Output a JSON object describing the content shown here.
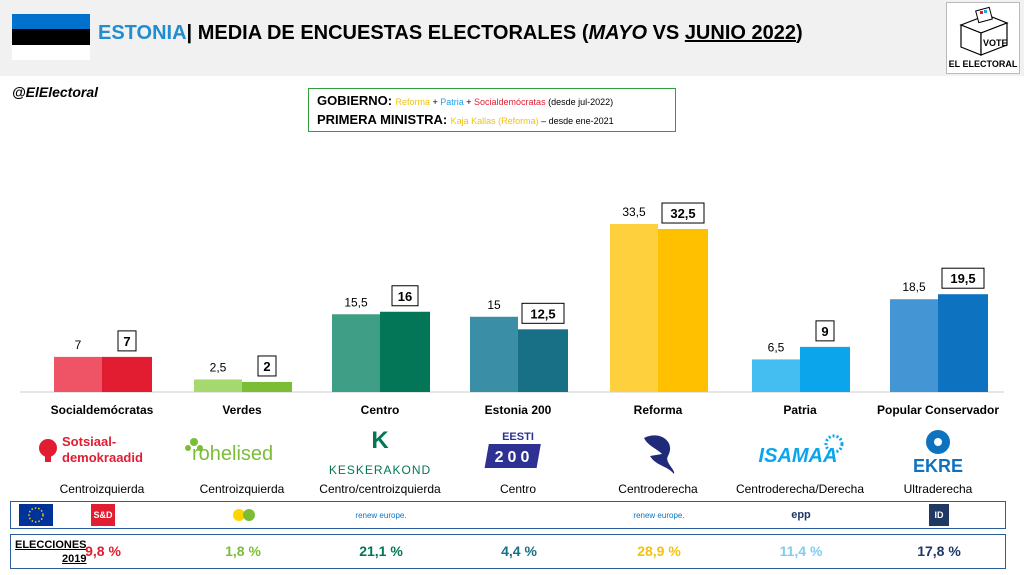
{
  "header": {
    "country": "ESTONIA",
    "separator": "|",
    "title_main": "MEDIA DE ENCUESTAS ELECTORALES (",
    "title_mayo": "MAYO",
    "title_vs": " VS ",
    "title_junio": "JUNIO 2022",
    "title_end": ")",
    "vote_text": "VOTE",
    "brand": "EL ELECTORAL"
  },
  "handle": "@ElElectoral",
  "government": {
    "gob_label": "GOBIERNO:",
    "gob_p1": "Reforma",
    "plus1": " + ",
    "gob_p2": "Patria",
    "plus2": " + ",
    "gob_p3": "Socialdemócratas",
    "gob_since": " (desde jul-2022)",
    "pm_label": "PRIMERA MINISTRA:",
    "pm_name": "Kaja Kallas (Reforma)",
    "pm_since": " – desde ene-2021"
  },
  "colors": {
    "reforma_text": "#f4c20d",
    "patria_text": "#1fa2e0",
    "sd_text": "#e21c31"
  },
  "chart_data": {
    "type": "bar",
    "categories": [
      "Socialdemócratas",
      "Verdes",
      "Centro",
      "Estonia 200",
      "Reforma",
      "Patria",
      "Popular Conservador"
    ],
    "series": [
      {
        "name": "MAYO",
        "values": [
          7,
          2.5,
          15.5,
          15,
          33.5,
          6.5,
          18.5
        ]
      },
      {
        "name": "JUNIO 2022",
        "values": [
          7,
          2,
          16,
          12.5,
          32.5,
          9,
          19.5
        ]
      }
    ],
    "labels_may": [
      "7",
      "2,5",
      "15,5",
      "15",
      "33,5",
      "6,5",
      "18,5"
    ],
    "labels_jun": [
      "7",
      "2",
      "16",
      "12,5",
      "32,5",
      "9",
      "19,5"
    ],
    "colors_may": [
      "#ee5465",
      "#a5d86f",
      "#3f9f86",
      "#3a8ea5",
      "#ffd03d",
      "#44bdf1",
      "#4495d3"
    ],
    "colors_jun": [
      "#e21c31",
      "#7bbe36",
      "#037657",
      "#177086",
      "#ffc000",
      "#0ba5ec",
      "#0d73c0"
    ],
    "ylim": [
      0,
      40
    ]
  },
  "parties": [
    {
      "name": "Socialdemócratas",
      "logo_line1": "Sotsiaal-",
      "logo_line2": "demokraadid",
      "ideology": "Centroizquierda",
      "logo_color": "#e21c31",
      "eu_group": "S&D",
      "elec2019": "9,8 %",
      "elec_color": "#e21c31"
    },
    {
      "name": "Verdes",
      "logo_line1": "rohelised",
      "logo_line2": "",
      "ideology": "Centroizquierda",
      "logo_color": "#7bbe36",
      "eu_group": "",
      "elec2019": "1,8 %",
      "elec_color": "#7bbe36"
    },
    {
      "name": "Centro",
      "logo_line1": "K",
      "logo_line2": "KESKERAKOND",
      "ideology": "Centro/centroizquierda",
      "logo_color": "#037657",
      "eu_group": "renew europe.",
      "elec2019": "21,1 %",
      "elec_color": "#037657"
    },
    {
      "name": "Estonia 200",
      "logo_line1": "EESTI",
      "logo_line2": "200",
      "ideology": "Centro",
      "logo_color": "#2e3192",
      "eu_group": "",
      "elec2019": "4,4 %",
      "elec_color": "#177086"
    },
    {
      "name": "Reforma",
      "logo_line1": "",
      "logo_line2": "",
      "ideology": "Centroderecha",
      "logo_color": "#1f2a7a",
      "eu_group": "renew europe.",
      "elec2019": "28,9 %",
      "elec_color": "#f4c20d"
    },
    {
      "name": "Patria",
      "logo_line1": "ISAMAA",
      "logo_line2": "",
      "ideology": "Centroderecha/Derecha",
      "logo_color": "#0ba5ec",
      "eu_group": "epp",
      "elec2019": "11,4 %",
      "elec_color": "#7fcdef"
    },
    {
      "name": "Popular Conservador",
      "logo_line1": "EKRE",
      "logo_line2": "",
      "ideology": "Ultraderecha",
      "logo_color": "#0d73c0",
      "eu_group": "ID",
      "elec2019": "17,8 %",
      "elec_color": "#1f3864"
    }
  ],
  "elections": {
    "label_line1": "ELECCIONES",
    "label_line2": "2019"
  }
}
